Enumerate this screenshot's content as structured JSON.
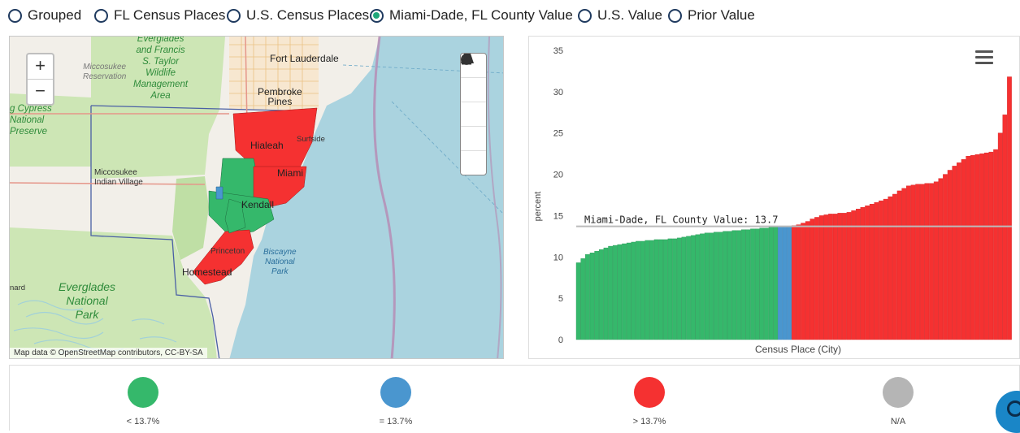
{
  "radios": [
    {
      "label": "Grouped",
      "selected": false
    },
    {
      "label": "FL Census Places",
      "selected": false
    },
    {
      "label": "U.S. Census Places",
      "selected": false
    },
    {
      "label": "Miami-Dade, FL County Value",
      "selected": true
    },
    {
      "label": "U.S. Value",
      "selected": false
    },
    {
      "label": "Prior Value",
      "selected": false
    }
  ],
  "map": {
    "zoom_in": "+",
    "zoom_out": "−",
    "attribution": "Map data © OpenStreetMap contributors, CC-BY-SA",
    "labels": {
      "everglades_wildlife": "Everglades\nand Francis\nS. Taylor\nWildlife\nManagement\nArea",
      "miccosukee_reservation": "Miccosukee\nReservation",
      "big_cypress": "g Cypress\nNational\nPreserve",
      "miccosukee_village": "Miccosukee\nIndian Village",
      "fort_lauderdale": "Fort Lauderdale",
      "pembroke_pines": "Pembroke\nPines",
      "hialeah": "Hialeah",
      "surfside": "Surfside",
      "miami": "Miami",
      "kendall": "Kendall",
      "biscayne": "Biscayne\nNational\nPark",
      "princeton": "Princeton",
      "homestead": "Homestead",
      "everglades_np": "Everglades\nNational\nPark",
      "left_edge": "nard"
    },
    "tools": [
      "download-icon",
      "info-icon",
      "road-icon",
      "contrast-icon",
      "expand-icon"
    ]
  },
  "chart_data": {
    "type": "bar",
    "xlabel": "Census Place (City)",
    "ylabel": "percent",
    "ylim": [
      0,
      35
    ],
    "yticks": [
      0,
      5,
      10,
      15,
      20,
      25,
      30,
      35
    ],
    "reference_line": {
      "label": "Miami-Dade, FL County Value: 13.7",
      "value": 13.7
    },
    "colors": {
      "below": "#35b86b",
      "equal": "#4a96cf",
      "above": "#f53131"
    },
    "values": [
      9.3,
      9.8,
      10.3,
      10.5,
      10.7,
      10.9,
      11.1,
      11.3,
      11.4,
      11.5,
      11.6,
      11.7,
      11.8,
      11.9,
      11.9,
      12.0,
      12.0,
      12.1,
      12.1,
      12.1,
      12.2,
      12.2,
      12.3,
      12.4,
      12.5,
      12.6,
      12.7,
      12.8,
      12.9,
      12.9,
      13.0,
      13.0,
      13.1,
      13.1,
      13.2,
      13.2,
      13.3,
      13.3,
      13.4,
      13.4,
      13.5,
      13.5,
      13.6,
      13.6,
      13.7,
      13.7,
      13.7,
      13.8,
      13.9,
      14.1,
      14.3,
      14.6,
      14.8,
      15.0,
      15.1,
      15.2,
      15.2,
      15.3,
      15.3,
      15.4,
      15.6,
      15.8,
      16.0,
      16.2,
      16.4,
      16.6,
      16.8,
      17.0,
      17.3,
      17.6,
      18.0,
      18.3,
      18.6,
      18.7,
      18.8,
      18.8,
      18.9,
      18.9,
      19.1,
      19.5,
      20.0,
      20.5,
      21.0,
      21.4,
      21.8,
      22.2,
      22.3,
      22.4,
      22.5,
      22.6,
      22.7,
      23.0,
      25.0,
      27.2,
      31.8
    ]
  },
  "legend": [
    {
      "label": "< 13.7%",
      "color": "#35b86b"
    },
    {
      "label": "= 13.7%",
      "color": "#4a96cf"
    },
    {
      "label": "> 13.7%",
      "color": "#f53131"
    },
    {
      "label": "N/A",
      "color": "#b5b5b5"
    }
  ]
}
